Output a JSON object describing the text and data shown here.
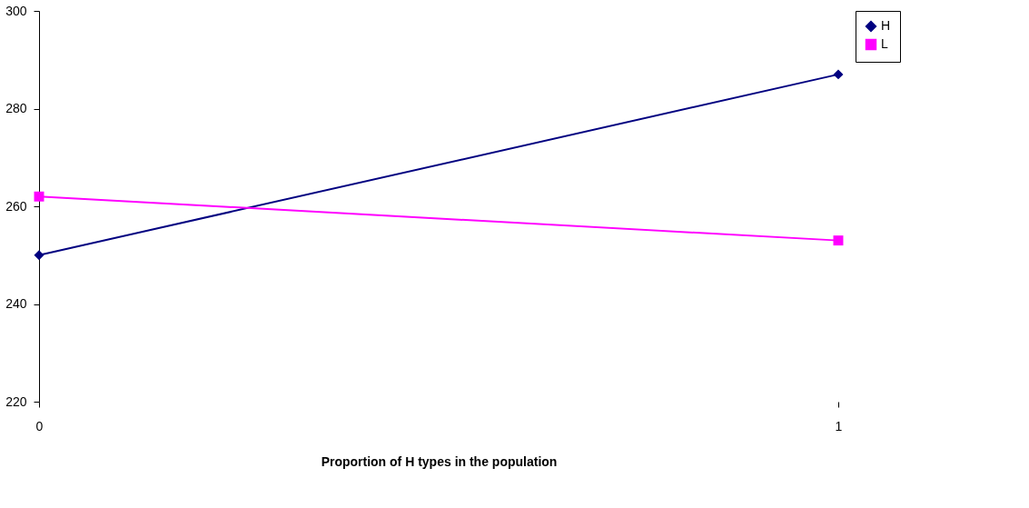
{
  "chart_data": {
    "type": "line",
    "xlabel": "Proportion of H types in the population",
    "x": [
      0,
      1
    ],
    "xlim": [
      0,
      1
    ],
    "xticks": [
      0,
      1
    ],
    "ylim": [
      220,
      300
    ],
    "yticks": [
      220,
      240,
      260,
      280,
      300
    ],
    "grid": false,
    "legend": "right",
    "series": [
      {
        "name": "H",
        "color": "#000080",
        "marker": "diamond",
        "values": [
          250,
          287
        ]
      },
      {
        "name": "L",
        "color": "#ff00ff",
        "marker": "square",
        "values": [
          262,
          253
        ]
      }
    ]
  }
}
